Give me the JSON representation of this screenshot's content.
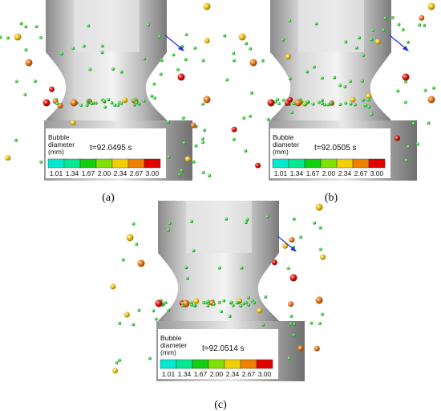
{
  "panels": [
    {
      "label": "(a)",
      "time": "t=92.0495 s"
    },
    {
      "label": "(b)",
      "time": "t=92.0505 s"
    },
    {
      "label": "(c)",
      "time": "t=92.0514 s"
    }
  ],
  "legend": {
    "title": [
      "Bubble",
      "diameter",
      "(mm)"
    ],
    "ticks": [
      "1.01",
      "1.34",
      "1.67",
      "2.00",
      "2.34",
      "2.67",
      "3.00"
    ]
  }
}
